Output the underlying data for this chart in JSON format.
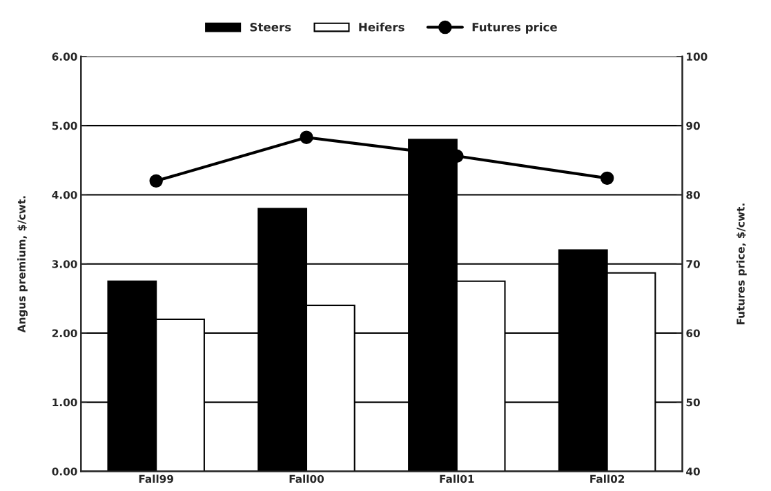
{
  "chart_data": {
    "type": "bar",
    "categories": [
      "Fall99",
      "Fall00",
      "Fall01",
      "Fall02"
    ],
    "ylabel": "Angus premium, $/cwt.",
    "y2label": "Futures price, $/cwt.",
    "ylim": [
      0,
      6
    ],
    "yticks": [
      {
        "value": 0,
        "label": "0.00"
      },
      {
        "value": 1,
        "label": "1.00"
      },
      {
        "value": 2,
        "label": "2.00"
      },
      {
        "value": 3,
        "label": "3.00"
      },
      {
        "value": 4,
        "label": "4.00"
      },
      {
        "value": 5,
        "label": "5.00"
      },
      {
        "value": 6,
        "label": "6.00"
      }
    ],
    "y2lim": [
      40,
      100
    ],
    "y2ticks": [
      40,
      50,
      60,
      70,
      80,
      90,
      100
    ],
    "grid": "y",
    "legend": "top",
    "series": [
      {
        "name": "Steers",
        "color": "#000000",
        "values": [
          2.75,
          3.8,
          4.8,
          3.2
        ]
      },
      {
        "name": "Heifers",
        "color": "#ffffff",
        "values": [
          2.2,
          2.4,
          2.75,
          2.87
        ]
      },
      {
        "name": "Futures price",
        "type": "line",
        "axis": "y2",
        "color": "#000000",
        "marker": "circle",
        "values": [
          82,
          88.3,
          85.6,
          82.4
        ]
      }
    ]
  }
}
